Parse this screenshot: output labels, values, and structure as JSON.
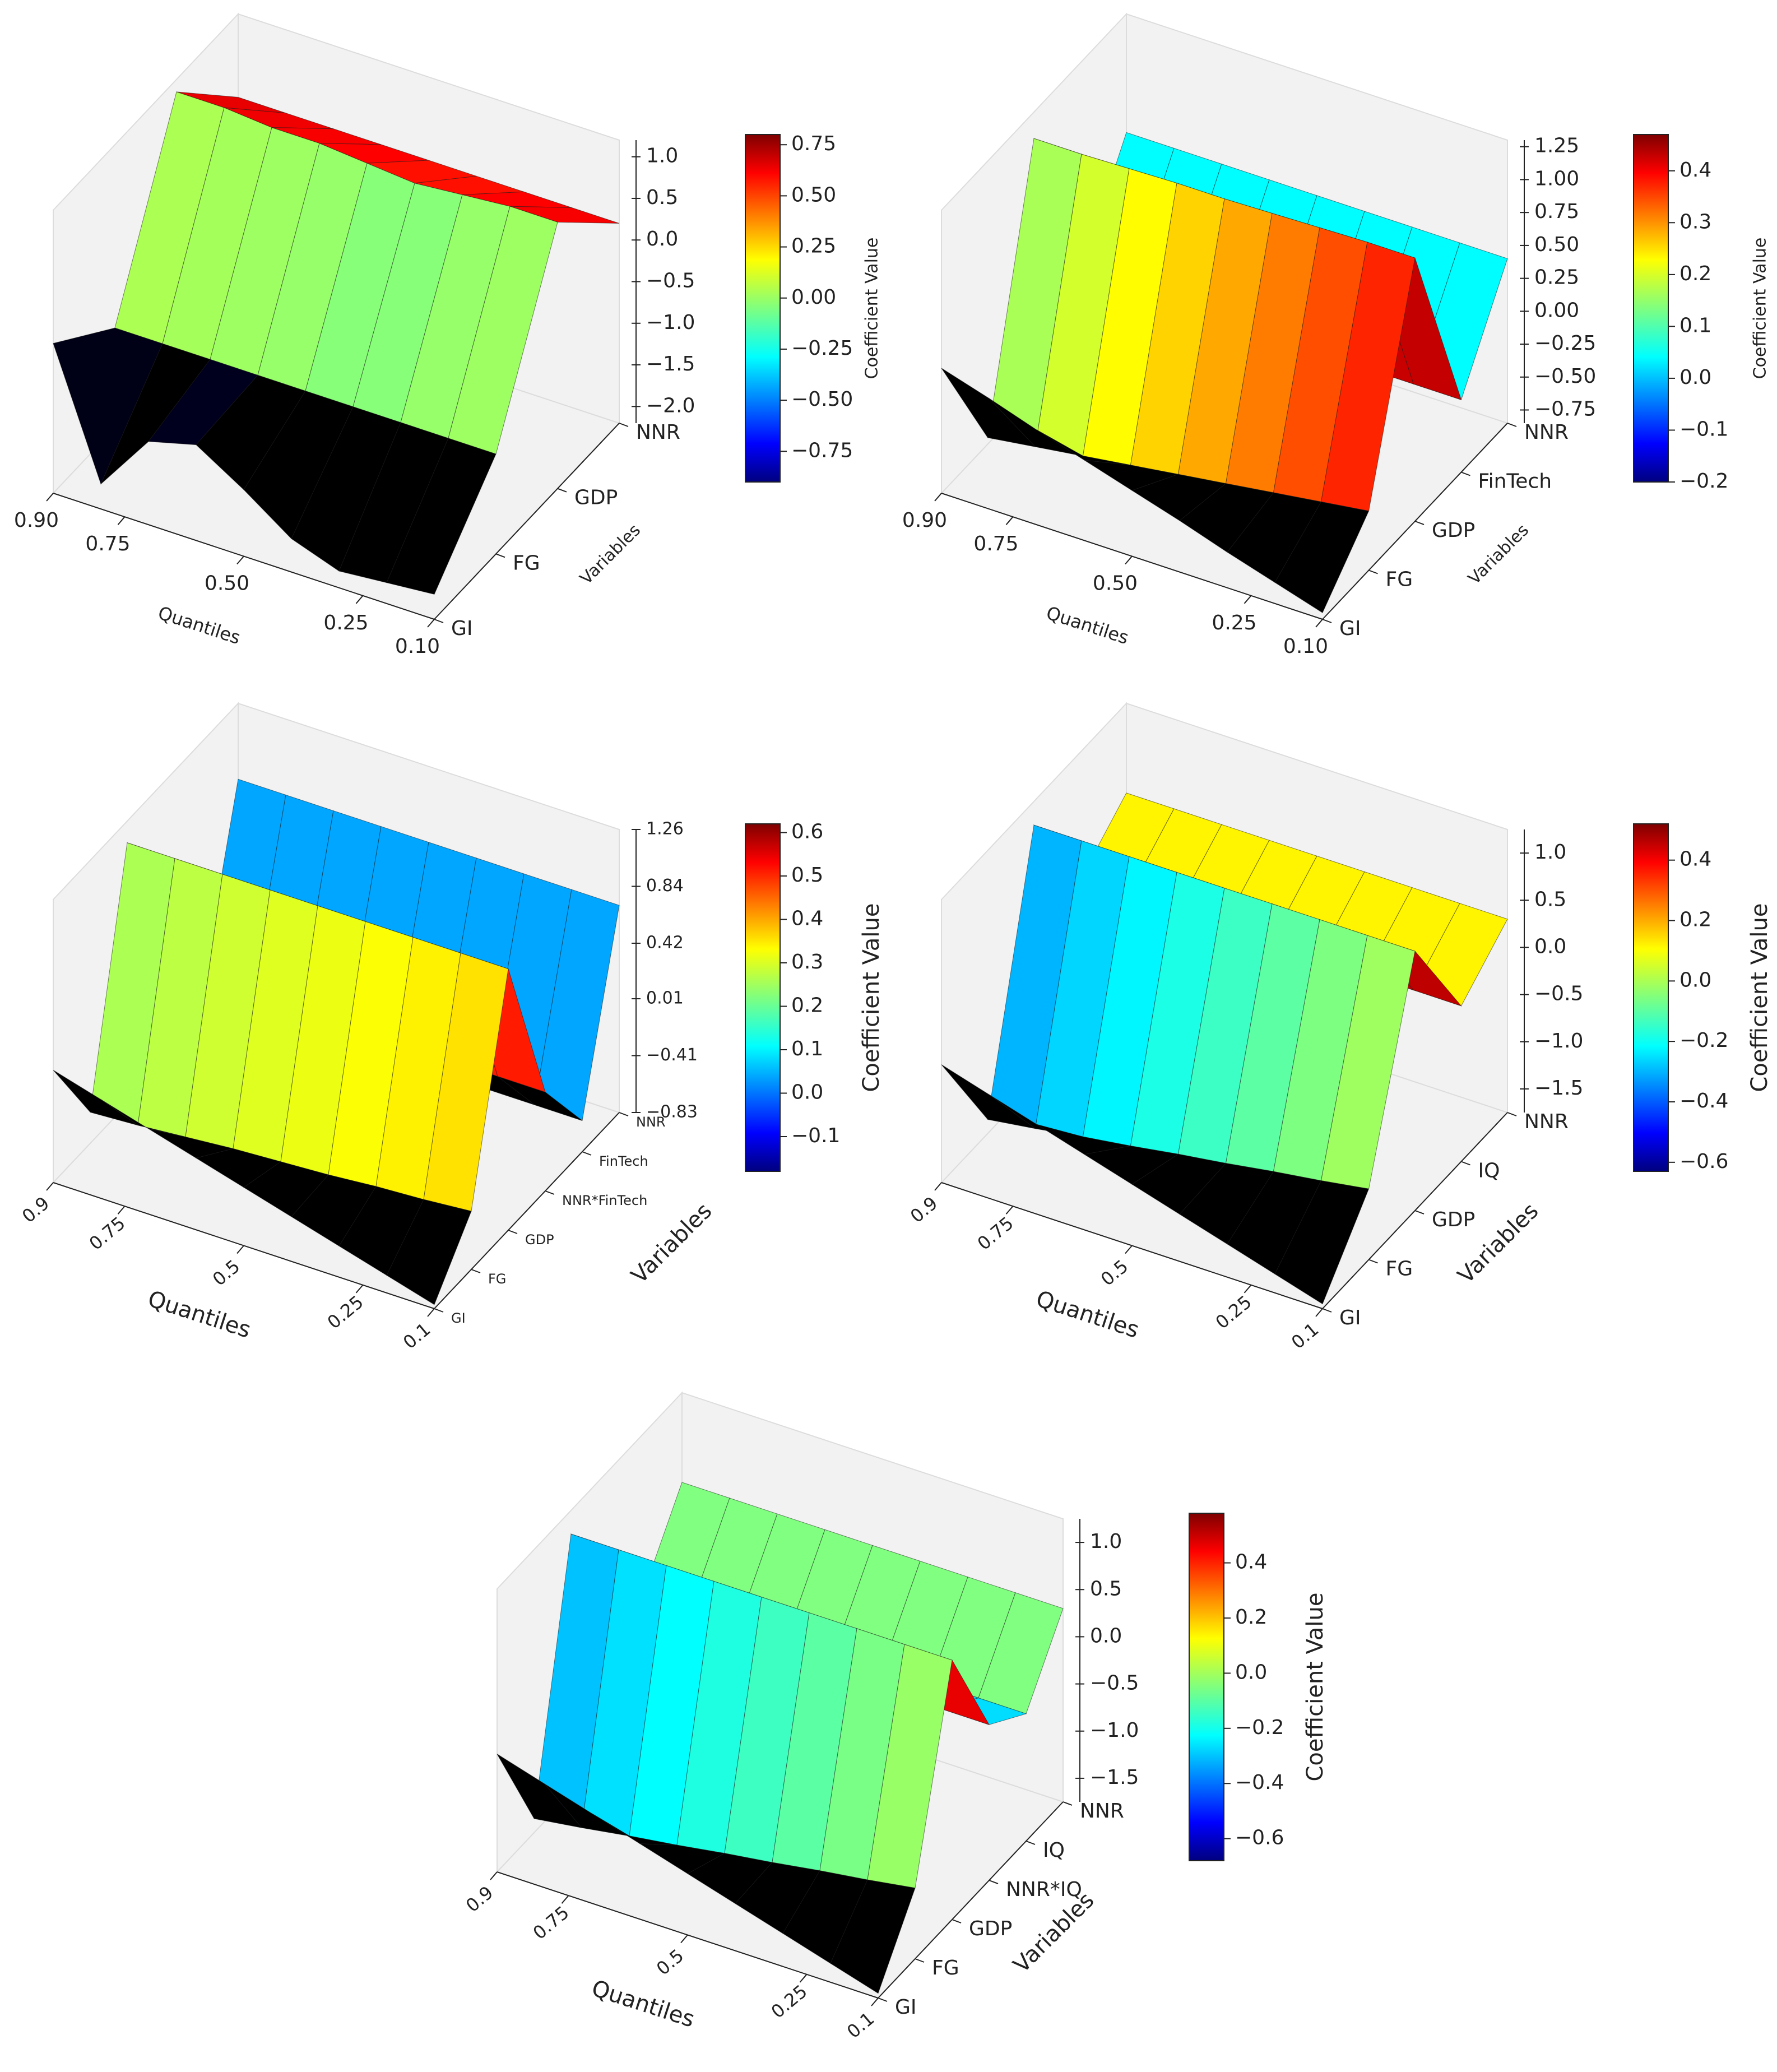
{
  "chart_data": [
    {
      "type": "surface",
      "x_label": "Quantiles",
      "y_label": "Variables",
      "z_label": "Coefficient Value",
      "x": [
        0.1,
        0.2,
        0.3,
        0.4,
        0.5,
        0.6,
        0.7,
        0.8,
        0.9
      ],
      "xlim": [
        0.9,
        0.1
      ],
      "xticks": [
        {
          "value": 0.9,
          "label": "0.90"
        },
        0.75,
        {
          "value": 0.5,
          "label": "0.50"
        },
        0.25,
        {
          "value": 0.1,
          "label": "0.10"
        }
      ],
      "y_categories": [
        "GI",
        "FG",
        "GDP",
        "NNR"
      ],
      "z": [
        [
          -1.9,
          -1.95,
          -2.0,
          -1.8,
          -1.4,
          -1.05,
          -1.2,
          -1.9,
          -0.4
        ],
        [
          -1.0,
          -1.0,
          -1.0,
          -1.0,
          -1.0,
          -1.0,
          -1.0,
          -1.0,
          -1.0
        ],
        [
          1.0,
          1.0,
          0.95,
          0.9,
          0.95,
          1.0,
          1.0,
          1.05,
          1.05
        ],
        [
          0.2,
          0.2,
          0.2,
          0.2,
          0.2,
          0.2,
          0.2,
          0.2,
          0.2
        ]
      ],
      "zlim": [
        -2.2,
        1.2
      ],
      "zticks": [
        {
          "value": 1.0,
          "label": "1.0"
        },
        0.5,
        {
          "value": 0.0,
          "label": "0.0"
        },
        {
          "value": -0.5,
          "label": "−0.5"
        },
        {
          "value": -1.0,
          "label": "−1.0"
        },
        {
          "value": -1.5,
          "label": "−1.5"
        },
        {
          "value": -2.0,
          "label": "−2.0"
        }
      ],
      "colormap": "jet",
      "clim": [
        -0.9,
        0.8
      ],
      "cticks": [
        0.75,
        {
          "value": 0.5,
          "label": "0.50"
        },
        0.25,
        {
          "value": 0.0,
          "label": "0.00"
        },
        {
          "value": -0.25,
          "label": "−0.25"
        },
        {
          "value": -0.5,
          "label": "−0.50"
        },
        {
          "value": -0.75,
          "label": "−0.75"
        }
      ]
    },
    {
      "type": "surface",
      "x_label": "Quantiles",
      "y_label": "Variables",
      "z_label": "Coefficient Value",
      "x": [
        0.1,
        0.2,
        0.3,
        0.4,
        0.5,
        0.6,
        0.7,
        0.8,
        0.9
      ],
      "xlim": [
        0.9,
        0.1
      ],
      "xticks": [
        {
          "value": 0.9,
          "label": "0.90"
        },
        0.75,
        {
          "value": 0.5,
          "label": "0.50"
        },
        0.25,
        {
          "value": 0.1,
          "label": "0.10"
        }
      ],
      "y_categories": [
        "GI",
        "FG",
        "GDP",
        "FinTech",
        "NNR"
      ],
      "z": [
        [
          -0.8,
          -0.69,
          -0.58,
          -0.46,
          -0.35,
          -0.24,
          -0.13,
          -0.01,
          0.1
        ],
        [
          -0.4,
          -0.45,
          -0.5,
          -0.55,
          -0.6,
          -0.65,
          -0.7,
          -0.75,
          -0.8
        ],
        [
          1.15,
          1.15,
          1.14,
          1.13,
          1.12,
          1.12,
          1.11,
          1.1,
          1.1
        ],
        [
          -0.3,
          -0.3,
          -0.3,
          -0.3,
          -0.3,
          -0.3,
          -0.3,
          -0.3,
          -0.3
        ],
        [
          0.4,
          0.4,
          0.4,
          0.4,
          0.4,
          0.4,
          0.4,
          0.4,
          0.4
        ]
      ],
      "zlim": [
        -0.85,
        1.3
      ],
      "zticks": [
        1.25,
        {
          "value": 1.0,
          "label": "1.00"
        },
        0.75,
        {
          "value": 0.5,
          "label": "0.50"
        },
        0.25,
        {
          "value": 0.0,
          "label": "0.00"
        },
        {
          "value": -0.25,
          "label": "−0.25"
        },
        {
          "value": -0.5,
          "label": "−0.50"
        },
        {
          "value": -0.75,
          "label": "−0.75"
        }
      ],
      "colormap": "jet",
      "clim": [
        -0.2,
        0.47
      ],
      "cticks": [
        0.4,
        0.3,
        0.2,
        0.1,
        {
          "value": 0.0,
          "label": "0.0"
        },
        {
          "value": -0.1,
          "label": "−0.1"
        },
        {
          "value": -0.2,
          "label": "−0.2"
        }
      ]
    },
    {
      "type": "surface",
      "x_label": "Quantiles",
      "y_label": "Variables",
      "z_label": "Coefficient Value",
      "x": [
        0.1,
        0.2,
        0.3,
        0.4,
        0.5,
        0.6,
        0.7,
        0.8,
        0.9
      ],
      "xlim": [
        0.9,
        0.1
      ],
      "xticks": [
        0.9,
        0.75,
        0.5,
        0.25,
        0.1
      ],
      "y_categories": [
        "GI",
        "FG",
        "GDP",
        "NNR*FinTech",
        "FinTech",
        "NNR"
      ],
      "z": [
        [
          -0.8,
          -0.7,
          -0.6,
          -0.5,
          -0.4,
          -0.3,
          -0.2,
          -0.1,
          0.0
        ],
        [
          -0.4,
          -0.43,
          -0.45,
          -0.48,
          -0.5,
          -0.52,
          -0.55,
          -0.58,
          -0.6
        ],
        [
          1.1,
          1.1,
          1.1,
          1.1,
          1.1,
          1.1,
          1.1,
          1.1,
          1.1
        ],
        [
          -0.1,
          -0.1,
          -0.1,
          -0.1,
          -0.1,
          -0.1,
          -0.1,
          -0.1,
          -0.1
        ],
        [
          -0.6,
          -0.6,
          -0.6,
          -0.6,
          -0.6,
          -0.6,
          -0.6,
          -0.6,
          -0.6
        ],
        [
          0.7,
          0.7,
          0.7,
          0.7,
          0.7,
          0.7,
          0.7,
          0.7,
          0.7
        ]
      ],
      "zlim": [
        -0.83,
        1.26
      ],
      "zticks": [
        1.26,
        0.84,
        0.42,
        0.01,
        {
          "value": -0.41,
          "label": "−0.41"
        },
        {
          "value": -0.83,
          "label": "−0.83"
        }
      ],
      "colormap": "jet",
      "clim": [
        -0.18,
        0.62
      ],
      "cticks": [
        0.6,
        0.5,
        0.4,
        0.3,
        0.2,
        0.1,
        {
          "value": 0.0,
          "label": "0.0"
        },
        {
          "value": -0.1,
          "label": "−0.1"
        }
      ]
    },
    {
      "type": "surface",
      "x_label": "Quantiles",
      "y_label": "Variables",
      "z_label": "Coefficient Value",
      "x": [
        0.1,
        0.2,
        0.3,
        0.4,
        0.5,
        0.6,
        0.7,
        0.8,
        0.9
      ],
      "xlim": [
        0.9,
        0.1
      ],
      "xticks": [
        0.9,
        0.75,
        0.5,
        0.25,
        0.1
      ],
      "y_categories": [
        "GI",
        "FG",
        "GDP",
        "IQ",
        "NNR"
      ],
      "z": [
        [
          -1.7,
          -1.55,
          -1.4,
          -1.25,
          -1.1,
          -0.95,
          -0.8,
          -0.65,
          -0.5
        ],
        [
          -1.0,
          -1.08,
          -1.15,
          -1.23,
          -1.3,
          -1.38,
          -1.45,
          -1.53,
          -1.6
        ],
        [
          1.0,
          1.0,
          1.0,
          1.0,
          1.0,
          1.0,
          1.0,
          1.0,
          1.0
        ],
        [
          -0.1,
          -0.1,
          -0.1,
          -0.1,
          -0.1,
          -0.1,
          -0.1,
          -0.1,
          -0.1
        ],
        [
          0.3,
          0.3,
          0.3,
          0.3,
          0.3,
          0.3,
          0.3,
          0.3,
          0.3
        ]
      ],
      "zlim": [
        -1.75,
        1.25
      ],
      "zticks": [
        {
          "value": 1.0,
          "label": "1.0"
        },
        0.5,
        {
          "value": 0.0,
          "label": "0.0"
        },
        {
          "value": -0.5,
          "label": "−0.5"
        },
        {
          "value": -1.0,
          "label": "−1.0"
        },
        {
          "value": -1.5,
          "label": "−1.5"
        }
      ],
      "colormap": "jet",
      "clim": [
        -0.63,
        0.52
      ],
      "cticks": [
        0.4,
        0.2,
        {
          "value": 0.0,
          "label": "0.0"
        },
        {
          "value": -0.2,
          "label": "−0.2"
        },
        {
          "value": -0.4,
          "label": "−0.4"
        },
        {
          "value": -0.6,
          "label": "−0.6"
        }
      ]
    },
    {
      "type": "surface",
      "x_label": "Quantiles",
      "y_label": "Variables",
      "z_label": "Coefficient Value",
      "x": [
        0.1,
        0.2,
        0.3,
        0.4,
        0.5,
        0.6,
        0.7,
        0.8,
        0.9
      ],
      "xlim": [
        0.9,
        0.1
      ],
      "xticks": [
        0.9,
        0.75,
        0.5,
        0.25,
        0.1
      ],
      "y_categories": [
        "GI",
        "FG",
        "GDP",
        "NNR*IQ",
        "IQ",
        "NNR"
      ],
      "z": [
        [
          -1.7,
          -1.55,
          -1.4,
          -1.25,
          -1.1,
          -0.95,
          -0.8,
          -0.65,
          -0.5
        ],
        [
          -1.0,
          -1.08,
          -1.15,
          -1.23,
          -1.3,
          -1.38,
          -1.45,
          -1.53,
          -1.6
        ],
        [
          1.0,
          1.0,
          1.0,
          1.0,
          1.0,
          1.0,
          1.0,
          1.0,
          1.0
        ],
        [
          -0.1,
          -0.1,
          -0.1,
          -0.1,
          -0.1,
          -0.1,
          -0.1,
          -0.1,
          -0.1
        ],
        [
          -0.4,
          -0.4,
          -0.4,
          -0.4,
          -0.4,
          -0.4,
          -0.4,
          -0.4,
          -0.4
        ],
        [
          0.3,
          0.3,
          0.3,
          0.3,
          0.3,
          0.3,
          0.3,
          0.3,
          0.3
        ]
      ],
      "zlim": [
        -1.75,
        1.25
      ],
      "zticks": [
        {
          "value": 1.0,
          "label": "1.0"
        },
        0.5,
        {
          "value": 0.0,
          "label": "0.0"
        },
        {
          "value": -0.5,
          "label": "−0.5"
        },
        {
          "value": -1.0,
          "label": "−1.0"
        },
        {
          "value": -1.5,
          "label": "−1.5"
        }
      ],
      "colormap": "jet",
      "clim": [
        -0.68,
        0.58
      ],
      "cticks": [
        0.4,
        0.2,
        {
          "value": 0.0,
          "label": "0.0"
        },
        {
          "value": -0.2,
          "label": "−0.2"
        },
        {
          "value": -0.4,
          "label": "−0.4"
        },
        {
          "value": -0.6,
          "label": "−0.6"
        }
      ]
    }
  ]
}
